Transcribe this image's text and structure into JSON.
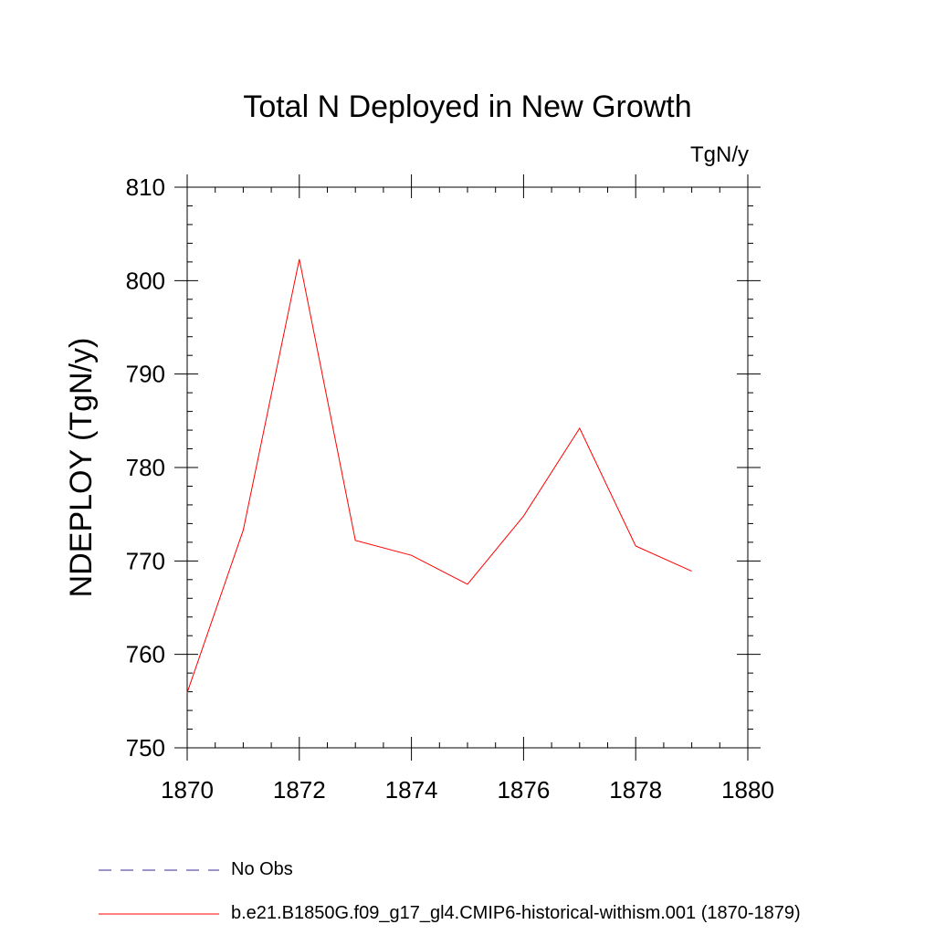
{
  "chart_data": {
    "type": "line",
    "title": "Total N Deployed in New Growth",
    "units_label": "TgN/y",
    "ylabel": "NDEPLOY  (TgN/y)",
    "xlabel": "",
    "xlim": [
      1870,
      1880
    ],
    "ylim": [
      750,
      810
    ],
    "x_ticks": [
      1870,
      1872,
      1874,
      1876,
      1878,
      1880
    ],
    "y_ticks": [
      750,
      760,
      770,
      780,
      790,
      800,
      810
    ],
    "grid": false,
    "legend_position": "bottom",
    "series": [
      {
        "name": "No Obs",
        "color": "#3a2a9a",
        "style": "dashed",
        "x": [],
        "values": []
      },
      {
        "name": "b.e21.B1850G.f09_g17_gl4.CMIP6-historical-withism.001 (1870-1879)",
        "color": "#ff0000",
        "style": "solid",
        "x": [
          1870,
          1871,
          1872,
          1873,
          1874,
          1875,
          1876,
          1877,
          1878,
          1879
        ],
        "values": [
          755.9,
          773.3,
          802.3,
          772.2,
          770.6,
          767.5,
          774.8,
          784.2,
          771.6,
          768.9
        ]
      }
    ]
  }
}
